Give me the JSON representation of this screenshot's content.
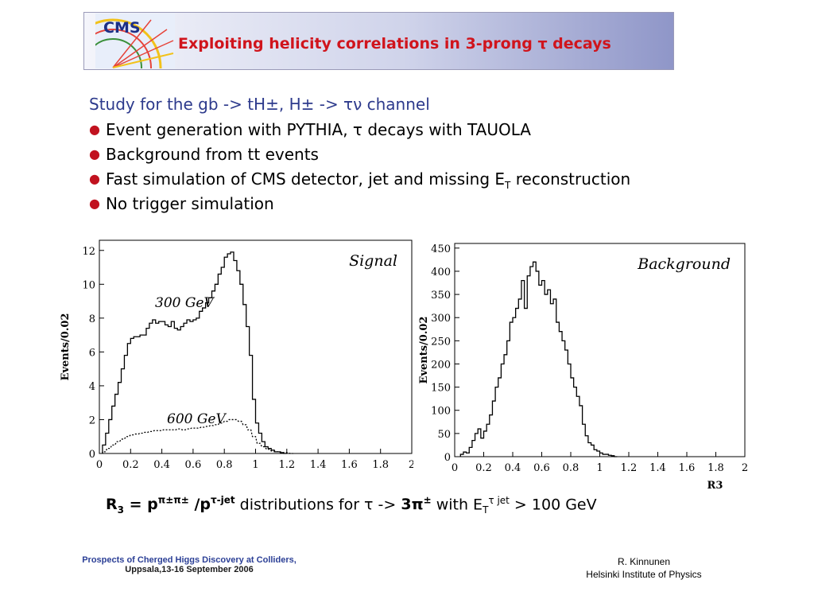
{
  "header": {
    "logo_text": "CMS",
    "title": "Exploiting helicity correlations in 3-prong τ decays"
  },
  "intro": "Study for the gb -> tH±, H± -> τν channel",
  "bullets": [
    {
      "text": "Event generation with PYTHIA, τ decays with TAUOLA"
    },
    {
      "text": "Background from tt events"
    },
    {
      "text_pre": "Fast simulation of CMS detector, jet and missing E",
      "sub": "T",
      "text_post": " reconstruction"
    },
    {
      "text": "No trigger simulation"
    }
  ],
  "chart_data": [
    {
      "type": "line",
      "title": "Signal",
      "ylabel": "Events/0.02",
      "xlabel": "",
      "xlim": [
        0,
        2
      ],
      "ylim": [
        0,
        12.6
      ],
      "x_ticks": [
        "0",
        "0.2",
        "0.4",
        "0.6",
        "0.8",
        "1",
        "1.2",
        "1.4",
        "1.6",
        "1.8",
        "2"
      ],
      "y_ticks": [
        "0",
        "2",
        "4",
        "6",
        "8",
        "10",
        "12"
      ],
      "annotations": [
        "300 GeV",
        "600 GeV"
      ],
      "series": [
        {
          "name": "300 GeV",
          "style": "solid",
          "x": [
            0.03,
            0.05,
            0.07,
            0.09,
            0.11,
            0.13,
            0.15,
            0.17,
            0.19,
            0.21,
            0.23,
            0.25,
            0.27,
            0.29,
            0.31,
            0.33,
            0.35,
            0.37,
            0.39,
            0.41,
            0.43,
            0.45,
            0.47,
            0.49,
            0.51,
            0.53,
            0.55,
            0.57,
            0.59,
            0.61,
            0.63,
            0.65,
            0.67,
            0.69,
            0.71,
            0.73,
            0.75,
            0.77,
            0.79,
            0.81,
            0.83,
            0.85,
            0.87,
            0.89,
            0.91,
            0.93,
            0.95,
            0.97,
            0.99,
            1.01,
            1.03,
            1.05,
            1.07,
            1.09,
            1.11,
            1.13,
            1.15,
            1.17,
            1.19
          ],
          "y": [
            0.5,
            1.2,
            2.0,
            2.8,
            3.5,
            4.2,
            5.0,
            5.8,
            6.5,
            6.8,
            6.9,
            6.9,
            7.0,
            7.0,
            7.4,
            7.7,
            7.9,
            7.7,
            7.8,
            7.8,
            7.6,
            7.5,
            7.8,
            7.4,
            7.3,
            7.5,
            7.7,
            7.9,
            7.8,
            7.9,
            8.0,
            8.4,
            8.6,
            8.9,
            9.2,
            9.6,
            10.0,
            10.6,
            11.0,
            11.6,
            11.8,
            11.9,
            11.4,
            10.8,
            10.0,
            8.8,
            7.5,
            5.8,
            3.2,
            1.8,
            1.2,
            0.7,
            0.4,
            0.3,
            0.2,
            0.1,
            0.1,
            0.05,
            0.0
          ]
        },
        {
          "name": "600 GeV",
          "style": "dashed",
          "x": [
            0.03,
            0.06,
            0.09,
            0.12,
            0.15,
            0.18,
            0.21,
            0.24,
            0.27,
            0.3,
            0.33,
            0.36,
            0.39,
            0.42,
            0.45,
            0.48,
            0.51,
            0.54,
            0.57,
            0.6,
            0.63,
            0.66,
            0.69,
            0.72,
            0.75,
            0.78,
            0.81,
            0.84,
            0.87,
            0.9,
            0.93,
            0.96,
            0.99,
            1.02,
            1.05,
            1.08,
            1.11,
            1.14,
            1.17,
            1.2,
            1.23
          ],
          "y": [
            0.1,
            0.3,
            0.5,
            0.7,
            0.85,
            1.0,
            1.1,
            1.15,
            1.2,
            1.25,
            1.3,
            1.35,
            1.35,
            1.4,
            1.4,
            1.4,
            1.45,
            1.4,
            1.45,
            1.5,
            1.5,
            1.55,
            1.6,
            1.65,
            1.7,
            1.8,
            1.9,
            2.0,
            2.0,
            1.9,
            1.7,
            1.4,
            1.0,
            0.6,
            0.4,
            0.25,
            0.15,
            0.1,
            0.05,
            0.05,
            0.0
          ]
        }
      ]
    },
    {
      "type": "line",
      "title": "Background",
      "ylabel": "Events/0.02",
      "xlabel": "R3",
      "xlim": [
        0,
        2
      ],
      "ylim": [
        0,
        460
      ],
      "x_ticks": [
        "0",
        "0.2",
        "0.4",
        "0.6",
        "0.8",
        "1",
        "1.2",
        "1.4",
        "1.6",
        "1.8",
        "2"
      ],
      "y_ticks": [
        "0",
        "50",
        "100",
        "150",
        "200",
        "250",
        "300",
        "350",
        "400",
        "450"
      ],
      "series": [
        {
          "name": "",
          "style": "solid",
          "x": [
            0.05,
            0.07,
            0.09,
            0.11,
            0.13,
            0.15,
            0.17,
            0.19,
            0.21,
            0.23,
            0.25,
            0.27,
            0.29,
            0.31,
            0.33,
            0.35,
            0.37,
            0.39,
            0.41,
            0.43,
            0.45,
            0.47,
            0.49,
            0.51,
            0.53,
            0.55,
            0.57,
            0.59,
            0.61,
            0.63,
            0.65,
            0.67,
            0.69,
            0.71,
            0.73,
            0.75,
            0.77,
            0.79,
            0.81,
            0.83,
            0.85,
            0.87,
            0.89,
            0.91,
            0.93,
            0.95,
            0.97,
            0.99,
            1.01,
            1.03,
            1.05,
            1.07,
            1.09,
            1.11
          ],
          "y": [
            5,
            10,
            8,
            20,
            35,
            50,
            60,
            40,
            55,
            70,
            90,
            120,
            150,
            170,
            200,
            220,
            250,
            290,
            300,
            320,
            340,
            380,
            320,
            390,
            410,
            420,
            400,
            370,
            380,
            350,
            360,
            330,
            340,
            290,
            270,
            250,
            230,
            200,
            170,
            150,
            130,
            110,
            70,
            45,
            30,
            25,
            15,
            12,
            8,
            5,
            5,
            3,
            2,
            0
          ]
        }
      ]
    }
  ],
  "caption": {
    "r3": "R",
    "r3_sub": "3",
    "eq": " = p",
    "pi_sup": "π±π±",
    "slash": " /p",
    "tau_sup": "τ-jet",
    "mid": " distributions for τ -> ",
    "three_pi": "3π",
    "three_pi_sup": "±",
    "with": " with E",
    "et_sub": "T",
    "et_sup": "τ  jet",
    "tail": " > 100 GeV"
  },
  "footer": {
    "conf_line1": "Prospects of Cherged Higgs Discovery at Colliders,",
    "conf_line2": "Uppsala,13-16 September 2006",
    "author": "R. Kinnunen",
    "institute": "Helsinki Institute of Physics"
  },
  "colors": {
    "title": "#d0141c",
    "intro": "#2d3a8c",
    "bullet": "#c1121f",
    "footer_conf": "#2b3f96"
  }
}
